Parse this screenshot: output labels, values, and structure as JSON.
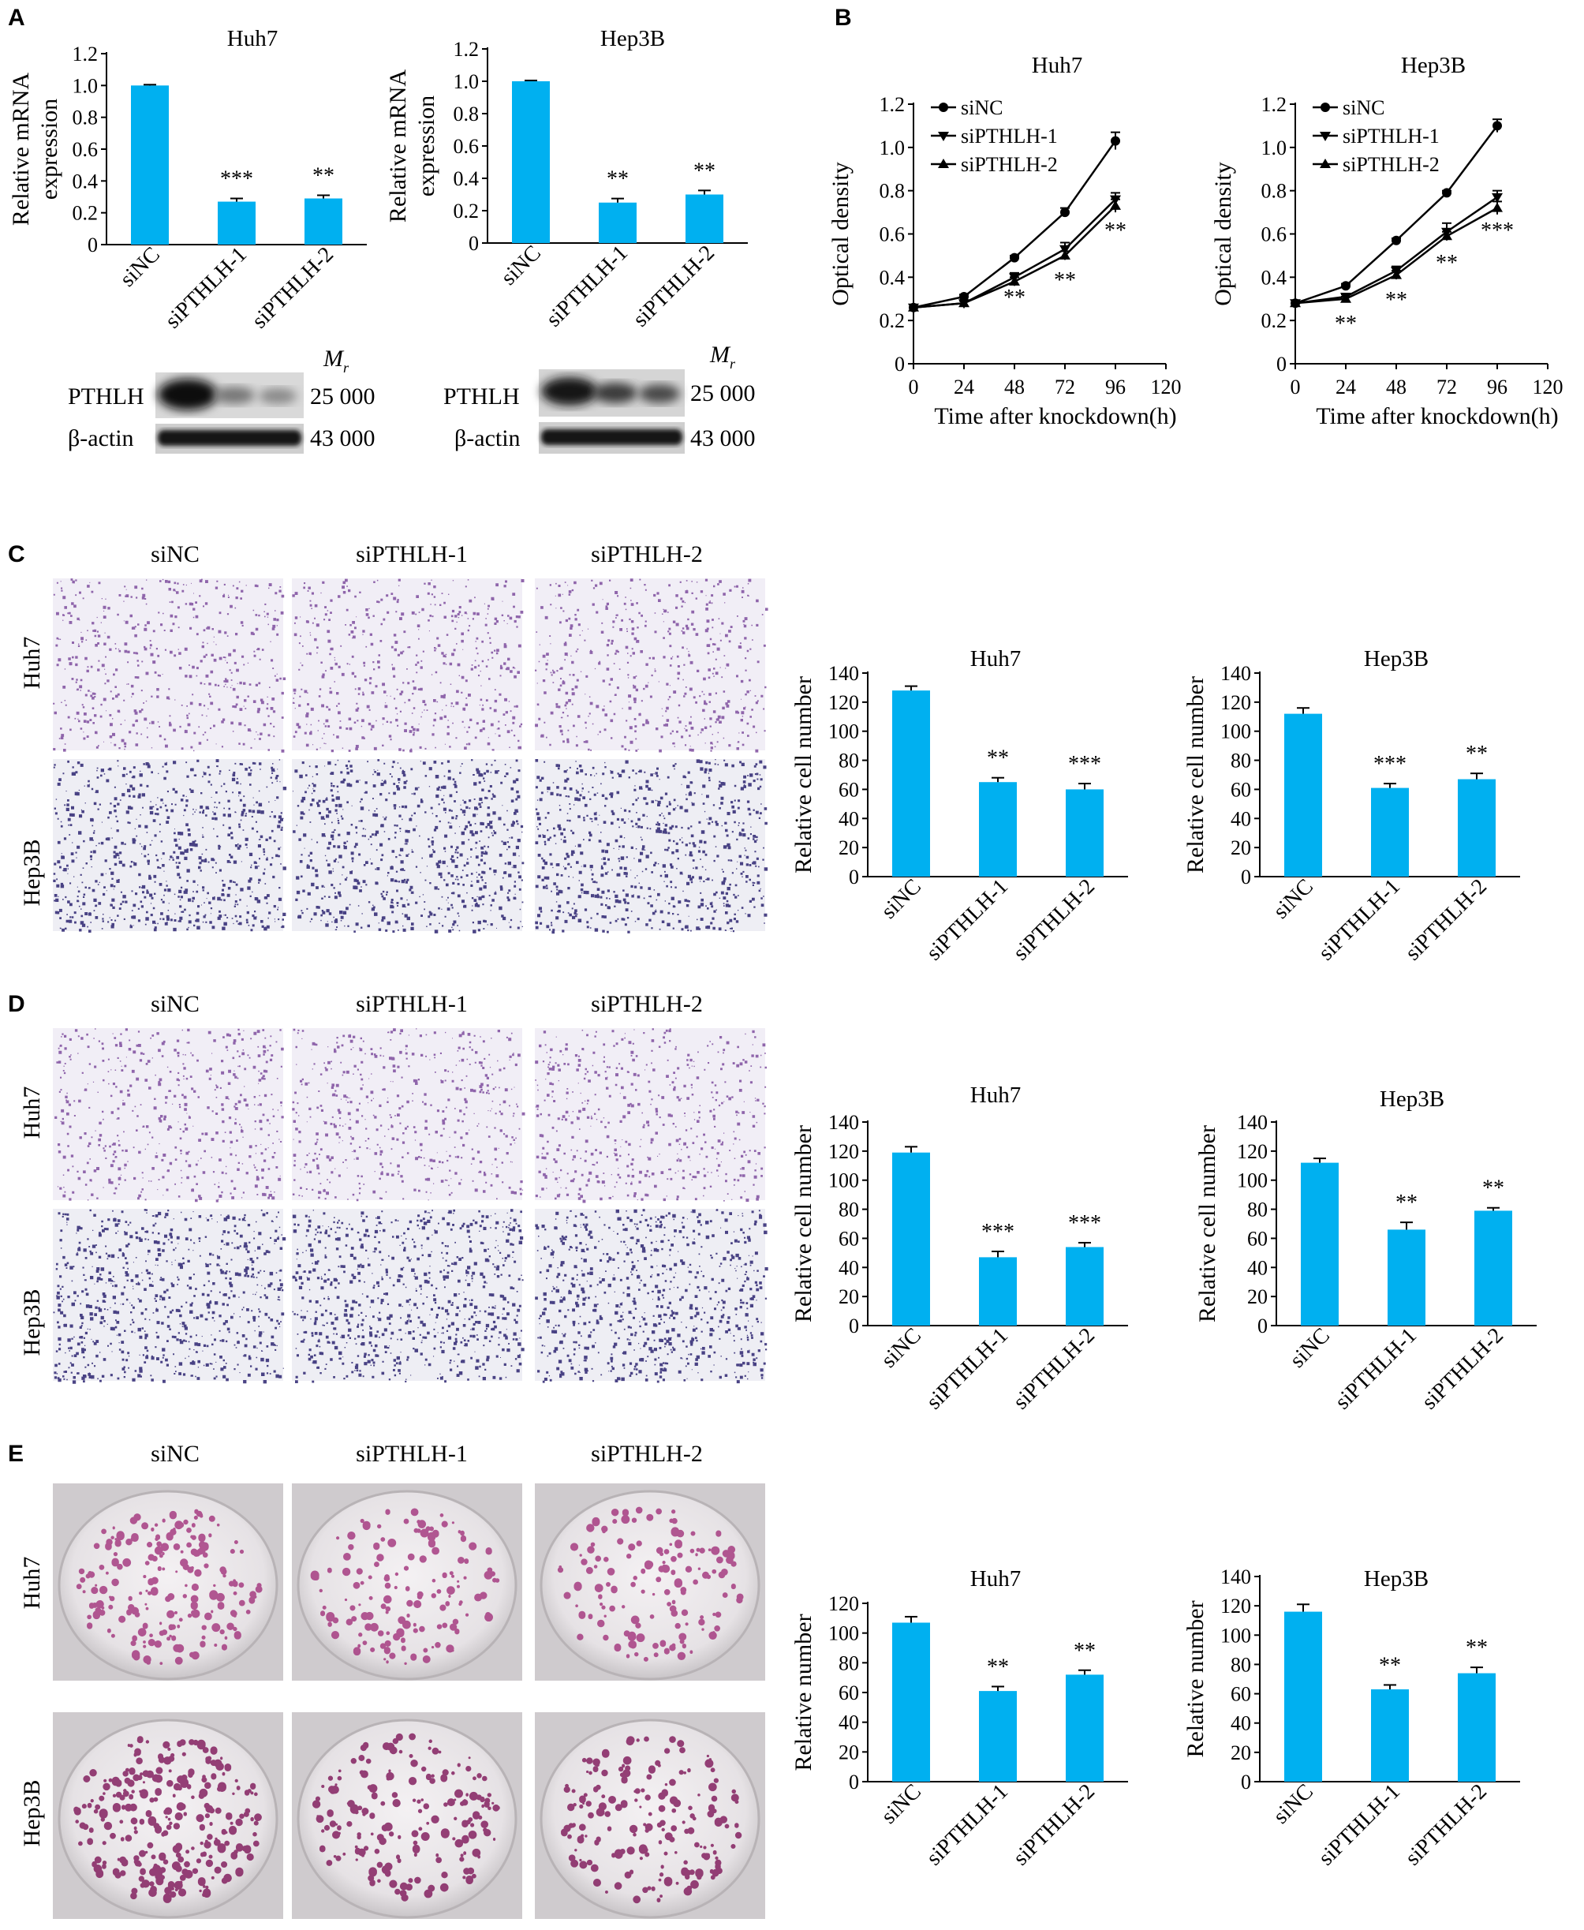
{
  "figure": {
    "colors": {
      "bar": "#00b0f0",
      "axis": "#000000"
    },
    "panels": {
      "A": {
        "letter": "A",
        "blot_huh7": {
          "target": "PTHLH",
          "loading": "β-actin",
          "mr_unit_main": "M",
          "mr_unit_sub": "r",
          "mr_target": "25 000",
          "mr_loading": "43 000"
        },
        "blot_hep3b": {
          "target": "PTHLH",
          "loading": "β-actin",
          "mr_unit_main": "M",
          "mr_unit_sub": "r",
          "mr_target": "25 000",
          "mr_loading": "43 000"
        }
      },
      "B": {
        "letter": "B"
      },
      "C": {
        "letter": "C",
        "columns": [
          "siNC",
          "siPTHLH-1",
          "siPTHLH-2"
        ],
        "rows": [
          "Huh7",
          "Hep3B"
        ]
      },
      "D": {
        "letter": "D",
        "columns": [
          "siNC",
          "siPTHLH-1",
          "siPTHLH-2"
        ],
        "rows": [
          "Huh7",
          "Hep3B"
        ]
      },
      "E": {
        "letter": "E",
        "columns": [
          "siNC",
          "siPTHLH-1",
          "siPTHLH-2"
        ],
        "rows": [
          "Huh7",
          "Hep3B"
        ]
      }
    }
  },
  "chart_data": [
    {
      "id": "A-huh7",
      "type": "bar",
      "title": "Huh7",
      "ylabel": "Relative mRNA expression",
      "ylabel_lines": [
        "Relative mRNA",
        "expression"
      ],
      "categories": [
        "siNC",
        "siPTHLH-1",
        "siPTHLH-2"
      ],
      "values": [
        1.0,
        0.27,
        0.29
      ],
      "errors": [
        0.005,
        0.02,
        0.02
      ],
      "sig": [
        "",
        "***",
        "**"
      ],
      "ylim": [
        0,
        1.2
      ],
      "yticks": [
        0,
        0.2,
        0.4,
        0.6,
        0.8,
        1.0,
        1.2
      ],
      "ytick_labels": [
        "0",
        "0.2",
        "0.4",
        "0.6",
        "0.8",
        "1.0",
        "1.2"
      ]
    },
    {
      "id": "A-hep3b",
      "type": "bar",
      "title": "Hep3B",
      "ylabel": "Relative mRNA expression",
      "ylabel_lines": [
        "Relative mRNA",
        "expression"
      ],
      "categories": [
        "siNC",
        "siPTHLH-1",
        "siPTHLH-2"
      ],
      "values": [
        1.0,
        0.25,
        0.3
      ],
      "errors": [
        0.005,
        0.025,
        0.025
      ],
      "sig": [
        "",
        "**",
        "**"
      ],
      "ylim": [
        0,
        1.2
      ],
      "yticks": [
        0,
        0.2,
        0.4,
        0.6,
        0.8,
        1.0,
        1.2
      ],
      "ytick_labels": [
        "0",
        "0.2",
        "0.4",
        "0.6",
        "0.8",
        "1.0",
        "1.2"
      ]
    },
    {
      "id": "B-huh7",
      "type": "line",
      "title": "Huh7",
      "xlabel": "Time after knockdown(h)",
      "ylabel": "Optical density",
      "x": [
        0,
        24,
        48,
        72,
        96
      ],
      "xlim": [
        0,
        120
      ],
      "ylim": [
        0,
        1.2
      ],
      "xticks": [
        0,
        24,
        48,
        72,
        96,
        120
      ],
      "yticks": [
        0,
        0.2,
        0.4,
        0.6,
        0.8,
        1.0,
        1.2
      ],
      "ytick_labels": [
        "0",
        "0.2",
        "0.4",
        "0.6",
        "0.8",
        "1.0",
        "1.2"
      ],
      "legend_position": "top-left",
      "series": [
        {
          "name": "siNC",
          "marker": "circle",
          "values": [
            0.26,
            0.31,
            0.49,
            0.7,
            1.03
          ],
          "errors": [
            0,
            0.01,
            0.01,
            0.02,
            0.04
          ]
        },
        {
          "name": "siPTHLH-1",
          "marker": "triangle-down",
          "values": [
            0.26,
            0.28,
            0.4,
            0.53,
            0.76
          ],
          "errors": [
            0,
            0.01,
            0.02,
            0.03,
            0.03
          ]
        },
        {
          "name": "siPTHLH-2",
          "marker": "triangle-up",
          "values": [
            0.26,
            0.28,
            0.38,
            0.5,
            0.73
          ],
          "errors": [
            0,
            0.01,
            0.02,
            0.02,
            0.03
          ]
        }
      ],
      "sig": [
        {
          "x": 48,
          "y": 0.31,
          "text": "**"
        },
        {
          "x": 72,
          "y": 0.39,
          "text": "**"
        },
        {
          "x": 96,
          "y": 0.62,
          "text": "**"
        }
      ]
    },
    {
      "id": "B-hep3b",
      "type": "line",
      "title": "Hep3B",
      "xlabel": "Time after knockdown(h)",
      "ylabel": "Optical density",
      "x": [
        0,
        24,
        48,
        72,
        96
      ],
      "xlim": [
        0,
        120
      ],
      "ylim": [
        0,
        1.2
      ],
      "xticks": [
        0,
        24,
        48,
        72,
        96,
        120
      ],
      "yticks": [
        0,
        0.2,
        0.4,
        0.6,
        0.8,
        1.0,
        1.2
      ],
      "ytick_labels": [
        "0",
        "0.2",
        "0.4",
        "0.6",
        "0.8",
        "1.0",
        "1.2"
      ],
      "legend_position": "top-left",
      "series": [
        {
          "name": "siNC",
          "marker": "circle",
          "values": [
            0.28,
            0.36,
            0.57,
            0.79,
            1.1
          ],
          "errors": [
            0,
            0.01,
            0.01,
            0.01,
            0.03
          ]
        },
        {
          "name": "siPTHLH-1",
          "marker": "triangle-down",
          "values": [
            0.28,
            0.31,
            0.43,
            0.61,
            0.77
          ],
          "errors": [
            0,
            0.01,
            0.02,
            0.04,
            0.03
          ]
        },
        {
          "name": "siPTHLH-2",
          "marker": "triangle-up",
          "values": [
            0.28,
            0.3,
            0.41,
            0.59,
            0.72
          ],
          "errors": [
            0,
            0.01,
            0.02,
            0.02,
            0.03
          ]
        }
      ],
      "sig": [
        {
          "x": 24,
          "y": 0.19,
          "text": "**"
        },
        {
          "x": 48,
          "y": 0.3,
          "text": "**"
        },
        {
          "x": 72,
          "y": 0.47,
          "text": "**"
        },
        {
          "x": 96,
          "y": 0.62,
          "text": "***"
        }
      ]
    },
    {
      "id": "C-huh7",
      "type": "bar",
      "title": "Huh7",
      "ylabel": "Relative cell number",
      "categories": [
        "siNC",
        "siPTHLH-1",
        "siPTHLH-2"
      ],
      "values": [
        128,
        65,
        60
      ],
      "errors": [
        3,
        3,
        4
      ],
      "sig": [
        "",
        "**",
        "***"
      ],
      "ylim": [
        0,
        140
      ],
      "yticks": [
        0,
        20,
        40,
        60,
        80,
        100,
        120,
        140
      ]
    },
    {
      "id": "C-hep3b",
      "type": "bar",
      "title": "Hep3B",
      "ylabel": "Relative cell number",
      "categories": [
        "siNC",
        "siPTHLH-1",
        "siPTHLH-2"
      ],
      "values": [
        112,
        61,
        67
      ],
      "errors": [
        4,
        3,
        4
      ],
      "sig": [
        "",
        "***",
        "**"
      ],
      "ylim": [
        0,
        140
      ],
      "yticks": [
        0,
        20,
        40,
        60,
        80,
        100,
        120,
        140
      ]
    },
    {
      "id": "D-huh7",
      "type": "bar",
      "title": "Huh7",
      "ylabel": "Relative cell number",
      "categories": [
        "siNC",
        "siPTHLH-1",
        "siPTHLH-2"
      ],
      "values": [
        119,
        47,
        54
      ],
      "errors": [
        4,
        4,
        3
      ],
      "sig": [
        "",
        "***",
        "***"
      ],
      "ylim": [
        0,
        140
      ],
      "yticks": [
        0,
        20,
        40,
        60,
        80,
        100,
        120,
        140
      ]
    },
    {
      "id": "D-hep3b",
      "type": "bar",
      "title": "Hep3B",
      "ylabel": "Relative cell number",
      "categories": [
        "siNC",
        "siPTHLH-1",
        "siPTHLH-2"
      ],
      "values": [
        112,
        66,
        79
      ],
      "errors": [
        3,
        5,
        2
      ],
      "sig": [
        "",
        "**",
        "**"
      ],
      "ylim": [
        0,
        140
      ],
      "yticks": [
        0,
        20,
        40,
        60,
        80,
        100,
        120,
        140
      ]
    },
    {
      "id": "E-huh7",
      "type": "bar",
      "title": "Huh7",
      "ylabel": "Relative number",
      "categories": [
        "siNC",
        "siPTHLH-1",
        "siPTHLH-2"
      ],
      "values": [
        107,
        61,
        72
      ],
      "errors": [
        4,
        3,
        3
      ],
      "sig": [
        "",
        "**",
        "**"
      ],
      "ylim": [
        0,
        120
      ],
      "yticks": [
        0,
        20,
        40,
        60,
        80,
        100,
        120
      ]
    },
    {
      "id": "E-hep3b",
      "type": "bar",
      "title": "Hep3B",
      "ylabel": "Relative number",
      "categories": [
        "siNC",
        "siPTHLH-1",
        "siPTHLH-2"
      ],
      "values": [
        116,
        63,
        74
      ],
      "errors": [
        5,
        3,
        4
      ],
      "sig": [
        "",
        "**",
        "**"
      ],
      "ylim": [
        0,
        140
      ],
      "yticks": [
        0,
        20,
        40,
        60,
        80,
        100,
        120,
        140
      ]
    }
  ]
}
